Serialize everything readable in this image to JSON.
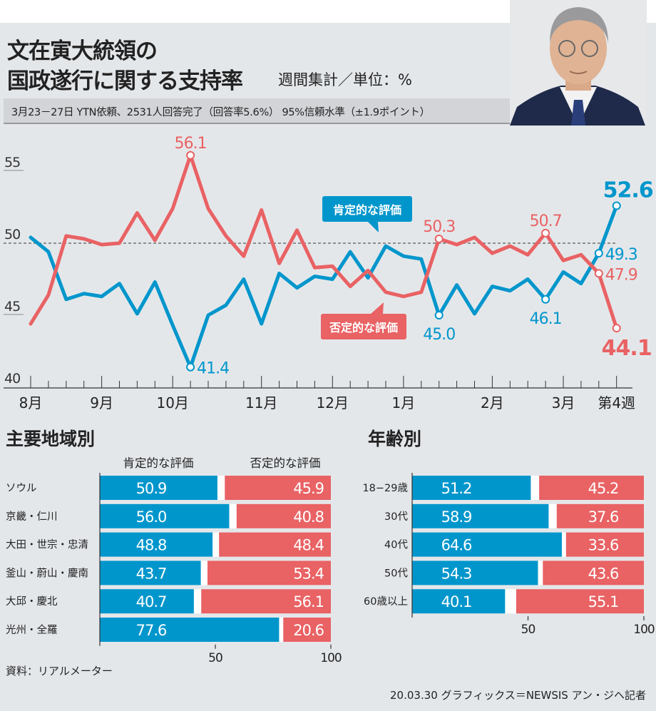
{
  "header": {
    "title_line1": "文在寅大統領の",
    "title_line2": "国政遂行に関する支持率",
    "subtitle": "週間集計／単位：%",
    "info": "3月23－27日  YTN依頼、2531人回答完了（回答率5.6%）  95%信頼水準（±1.9ポイント）",
    "photo": "portrait of president"
  },
  "colors": {
    "positive": "#0096cc",
    "negative": "#e96264",
    "background": "#e4e7ea"
  },
  "chart_data": [
    {
      "type": "line",
      "title": "文在寅大統領の国政遂行に関する支持率",
      "ylabel": "%",
      "ylim": [
        40,
        56.5
      ],
      "yticks": [
        40,
        45,
        50,
        55
      ],
      "reference_line": 50,
      "x_tick_labels": [
        {
          "week": 0,
          "label": "8月"
        },
        {
          "week": 4,
          "label": "9月"
        },
        {
          "week": 8,
          "label": "10月"
        },
        {
          "week": 13,
          "label": "11月"
        },
        {
          "week": 17,
          "label": "12月"
        },
        {
          "week": 21,
          "label": "1月"
        },
        {
          "week": 26,
          "label": "2月"
        },
        {
          "week": 30,
          "label": "3月"
        },
        {
          "week": 33,
          "label": "第4週"
        }
      ],
      "series": [
        {
          "name": "肯定的な評価",
          "color": "#0096cc",
          "values": [
            50.4,
            49.4,
            46.1,
            46.5,
            46.3,
            47.2,
            45.1,
            47.3,
            44.3,
            41.4,
            45.0,
            45.7,
            47.5,
            44.4,
            47.9,
            46.9,
            47.7,
            47.5,
            49.4,
            47.6,
            49.8,
            49.1,
            48.9,
            45.0,
            47.1,
            45.1,
            47.0,
            46.7,
            47.5,
            46.1,
            48.0,
            47.2,
            49.3,
            52.6
          ],
          "annotations": [
            {
              "week": 9,
              "label": "41.4",
              "pos": "right"
            },
            {
              "week": 23,
              "label": "45.0",
              "pos": "below"
            },
            {
              "week": 29,
              "label": "46.1",
              "pos": "below"
            },
            {
              "week": 32,
              "label": "49.3",
              "pos": "right"
            },
            {
              "week": 33,
              "label": "52.6",
              "pos": "above-big"
            }
          ]
        },
        {
          "name": "否定的な評価",
          "color": "#e96264",
          "values": [
            44.4,
            46.4,
            50.5,
            50.3,
            49.9,
            50.0,
            52.1,
            50.2,
            52.4,
            56.1,
            52.4,
            50.5,
            49.1,
            52.3,
            48.6,
            50.9,
            48.3,
            48.4,
            47.0,
            48.1,
            46.6,
            46.3,
            46.6,
            50.3,
            49.9,
            50.4,
            49.3,
            49.8,
            49.2,
            50.7,
            48.8,
            49.2,
            47.9,
            44.1
          ],
          "annotations": [
            {
              "week": 9,
              "label": "56.1",
              "pos": "above"
            },
            {
              "week": 23,
              "label": "50.3",
              "pos": "above"
            },
            {
              "week": 29,
              "label": "50.7",
              "pos": "above"
            },
            {
              "week": 32,
              "label": "47.9",
              "pos": "right"
            },
            {
              "week": 33,
              "label": "44.1",
              "pos": "below-big"
            }
          ]
        }
      ]
    },
    {
      "type": "bar",
      "title": "主要地域別",
      "orientation": "horizontal-stacked",
      "xlim": [
        0,
        100
      ],
      "xticks": [
        "50",
        "100"
      ],
      "column_headers": [
        "肯定的な評価",
        "否定的な評価"
      ],
      "categories": [
        "ソウル",
        "京畿・仁川",
        "大田・世宗・忠清",
        "釜山・蔚山・慶南",
        "大邱・慶北",
        "光州・全羅"
      ],
      "series": [
        {
          "name": "肯定的な評価",
          "values": [
            50.9,
            56.0,
            48.8,
            43.7,
            40.7,
            77.6
          ]
        },
        {
          "name": "否定的な評価",
          "values": [
            45.9,
            40.8,
            48.4,
            53.4,
            56.1,
            20.6
          ]
        }
      ]
    },
    {
      "type": "bar",
      "title": "年齢別",
      "orientation": "horizontal-stacked",
      "xlim": [
        0,
        100
      ],
      "xticks": [
        "50",
        "100"
      ],
      "categories": [
        "18−29歳",
        "30代",
        "40代",
        "50代",
        "60歳以上"
      ],
      "series": [
        {
          "name": "肯定的な評価",
          "values": [
            51.2,
            58.9,
            64.6,
            54.3,
            40.1
          ]
        },
        {
          "name": "否定的な評価",
          "values": [
            45.2,
            37.6,
            33.6,
            43.6,
            55.1
          ]
        }
      ]
    }
  ],
  "footer": {
    "source": "資料：リアルメーター",
    "credit": "20.03.30 グラフィックス＝NEWSIS アン・ジヘ記者"
  }
}
